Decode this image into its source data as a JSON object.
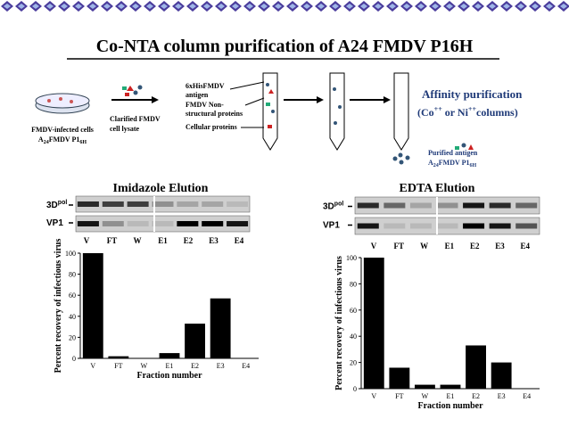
{
  "header": {
    "title": "Co-NTA column purification of A24 FMDV P16H"
  },
  "diagram": {
    "cells_label": "FMDV-infected cells",
    "cells_strain": [
      "A",
      "24",
      "FMDV P1",
      "6H"
    ],
    "lysate_label": [
      "Clarified FMDV",
      "cell lysate"
    ],
    "legend": [
      "6xHisFMDV",
      "antigen",
      "FMDV Non-",
      "structural proteins",
      "Cellular proteins"
    ],
    "affinity_title": "Affinity purification",
    "affinity_columns": [
      "(Co",
      "++",
      " or Ni",
      "++",
      "columns)"
    ],
    "purified_label": "Purified antigen",
    "purified_strain": [
      "A",
      "24",
      "FMDV P1",
      "6H"
    ]
  },
  "chart_data": [
    {
      "type": "bar",
      "title": "Imidazole Elution",
      "blot_label_top": [
        "3D",
        "pol"
      ],
      "blot_label_bottom": "VP1",
      "lanes": [
        "V",
        "FT",
        "W",
        "E1",
        "E2",
        "E3",
        "E4"
      ],
      "categories": [
        "V",
        "FT",
        "W",
        "E1",
        "E2",
        "E3",
        "E4"
      ],
      "values": [
        100,
        2,
        0,
        5,
        33,
        57,
        0
      ],
      "color": "#000000",
      "ylim": [
        0,
        100
      ],
      "yticks": [
        0,
        20,
        40,
        60,
        80,
        100
      ],
      "y_label": "Percent recovery of infectious virus",
      "x_label": "Fraction number"
    },
    {
      "type": "bar",
      "title": "EDTA Elution",
      "blot_label_top": [
        "3D",
        "pol"
      ],
      "blot_label_bottom": "VP1",
      "lanes": [
        "V",
        "FT",
        "W",
        "E1",
        "E2",
        "E3",
        "E4"
      ],
      "categories": [
        "V",
        "FT",
        "W",
        "E1",
        "E2",
        "E3",
        "E4"
      ],
      "values": [
        100,
        16,
        3,
        3,
        33,
        20,
        0
      ],
      "color": "#000000",
      "ylim": [
        0,
        100
      ],
      "yticks": [
        0,
        20,
        40,
        60,
        80,
        100
      ],
      "y_label": "Percent recovery of infectious virus",
      "x_label": "Fraction number"
    }
  ]
}
